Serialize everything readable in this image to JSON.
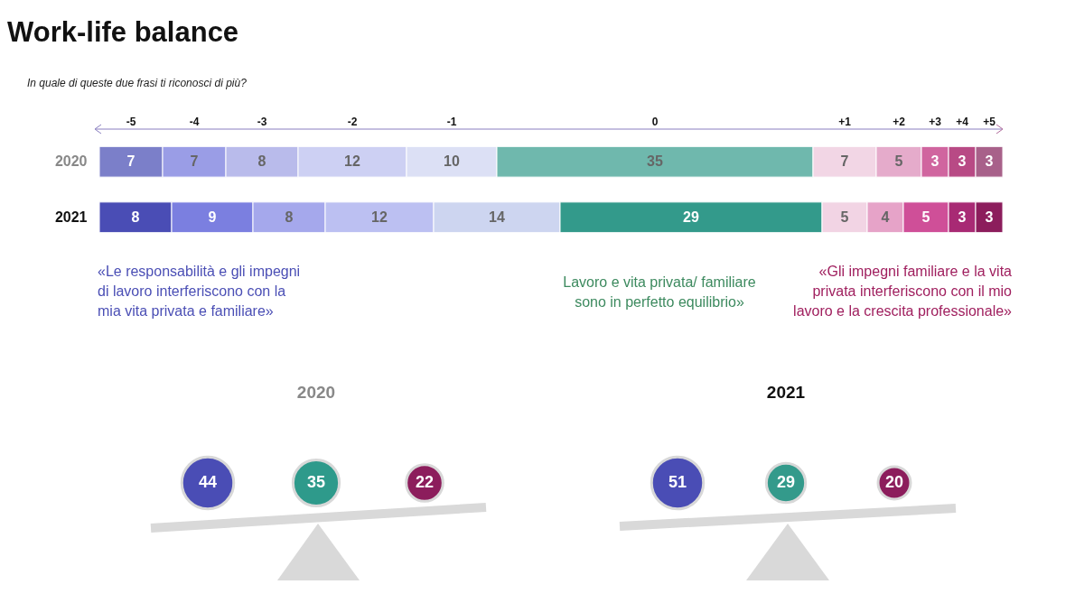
{
  "chart_data": [
    {
      "type": "bar",
      "title": "Work-life balance",
      "subtitle": "In quale di queste due frasi ti riconosci di più?",
      "orientation": "horizontal",
      "stacked": true,
      "data_labels": true,
      "categories": [
        "2020",
        "2021"
      ],
      "series": [
        {
          "name": "-5",
          "colors": [
            "#7b7fc9",
            "#4a4db5"
          ],
          "values": [
            7,
            8
          ]
        },
        {
          "name": "-4",
          "colors": [
            "#9a9de6",
            "#7b7fe0"
          ],
          "values": [
            7,
            9
          ]
        },
        {
          "name": "-3",
          "colors": [
            "#b9bbeb",
            "#a5a8ec"
          ],
          "values": [
            8,
            8
          ]
        },
        {
          "name": "-2",
          "colors": [
            "#cdd0f3",
            "#bcc0f2"
          ],
          "values": [
            12,
            12
          ]
        },
        {
          "name": "-1",
          "colors": [
            "#dce0f5",
            "#cdd5f0"
          ],
          "values": [
            10,
            14
          ]
        },
        {
          "name": "0",
          "colors": [
            "#6fb8ad",
            "#339a8b"
          ],
          "values": [
            35,
            29
          ]
        },
        {
          "name": "+1",
          "colors": [
            "#f2d6e5",
            "#f2d4e4"
          ],
          "values": [
            7,
            5
          ]
        },
        {
          "name": "+2",
          "colors": [
            "#e5abcb",
            "#e6a3c8"
          ],
          "values": [
            5,
            4
          ]
        },
        {
          "name": "+3",
          "colors": [
            "#d0659f",
            "#cf4f98"
          ],
          "values": [
            3,
            5
          ]
        },
        {
          "name": "+4",
          "colors": [
            "#b84a85",
            "#a82a74"
          ],
          "values": [
            3,
            3
          ]
        },
        {
          "name": "+5",
          "colors": [
            "#a8618a",
            "#8c1d5c"
          ],
          "values": [
            3,
            3
          ]
        }
      ],
      "annotations": [
        "«Le responsabilità e gli impegni di lavoro interferiscono con la mia vita privata e familiare»",
        "Lavoro e vita privata/ familiare sono in perfetto equilibrio»",
        "«Gli impegni familiare e la vita privata interferiscono con il mio lavoro e la crescita professionale»"
      ]
    },
    {
      "type": "other",
      "title": "2020",
      "data_labels": true,
      "categories": [
        null,
        null,
        null
      ],
      "values": [
        44,
        35,
        22
      ],
      "colors": [
        "#4a4db5",
        "#2e9a8b",
        "#8c1d5c"
      ]
    },
    {
      "type": "other",
      "title": "2021",
      "data_labels": true,
      "categories": [
        null,
        null,
        null
      ],
      "values": [
        51,
        29,
        20
      ],
      "colors": [
        "#4a4db5",
        "#339a8b",
        "#8c1d5c"
      ]
    }
  ]
}
